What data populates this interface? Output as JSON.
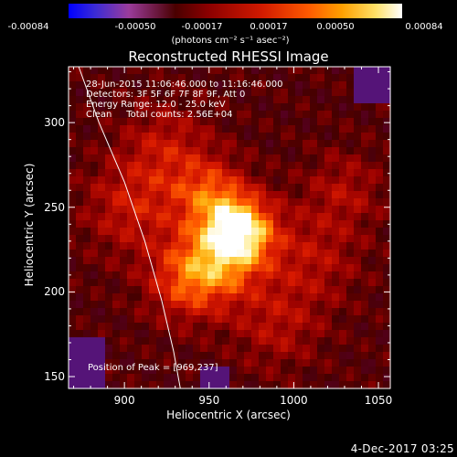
{
  "colorbar": {
    "ticks": [
      "-0.00084",
      "-0.00050",
      "-0.00017",
      "0.00017",
      "0.00050",
      "0.00084"
    ],
    "units_label": "(photons cm⁻² s⁻¹ asec⁻²)"
  },
  "chart_data": {
    "type": "heatmap",
    "title": "Reconstructed RHESSI Image",
    "xlabel": "Heliocentric X (arcsec)",
    "ylabel": "Heliocentric Y (arcsec)",
    "xlim": [
      867,
      1057
    ],
    "ylim": [
      143,
      333
    ],
    "x_ticks": [
      "900",
      "950",
      "1000",
      "1050"
    ],
    "y_ticks": [
      "150",
      "200",
      "250",
      "300"
    ],
    "x_tick_values": [
      900,
      950,
      1000,
      1050
    ],
    "y_tick_values": [
      150,
      200,
      250,
      300
    ],
    "color_range": [
      -0.00084,
      0.00084
    ],
    "color_units": "photons cm^-2 s^-1 asec^-2",
    "peak_position": [
      969,
      237
    ],
    "annotations": {
      "time_range": "28-Jun-2015 11:06:46.000 to 11:16:46.000",
      "detectors": "Detectors: 3F 5F 6F 7F 8F 9F, Att 0",
      "energy_range": "Energy Range: 12.0 - 25.0 keV",
      "method_counts": "Clean     Total counts: 2.56E+04",
      "peak_text": "Position of Peak = [969,237]"
    },
    "limb_curve": [
      [
        873,
        333
      ],
      [
        885,
        300
      ],
      [
        900,
        265
      ],
      [
        912,
        230
      ],
      [
        922,
        195
      ],
      [
        929,
        165
      ],
      [
        933,
        143
      ]
    ],
    "sources": [
      {
        "x": 969,
        "y": 237,
        "amplitude": 1.0,
        "sigma": 14
      },
      {
        "x": 955,
        "y": 218,
        "amplitude": 0.7,
        "sigma": 18
      },
      {
        "x": 950,
        "y": 258,
        "amplitude": 0.55,
        "sigma": 15
      },
      {
        "x": 935,
        "y": 205,
        "amplitude": 0.45,
        "sigma": 16
      },
      {
        "x": 905,
        "y": 250,
        "amplitude": 0.4,
        "sigma": 20
      },
      {
        "x": 925,
        "y": 285,
        "amplitude": 0.35,
        "sigma": 18
      },
      {
        "x": 1010,
        "y": 220,
        "amplitude": 0.32,
        "sigma": 20
      },
      {
        "x": 1030,
        "y": 260,
        "amplitude": 0.28,
        "sigma": 16
      },
      {
        "x": 990,
        "y": 180,
        "amplitude": 0.3,
        "sigma": 18
      }
    ]
  },
  "footer": {
    "timestamp": "4-Dec-2017 03:25"
  }
}
